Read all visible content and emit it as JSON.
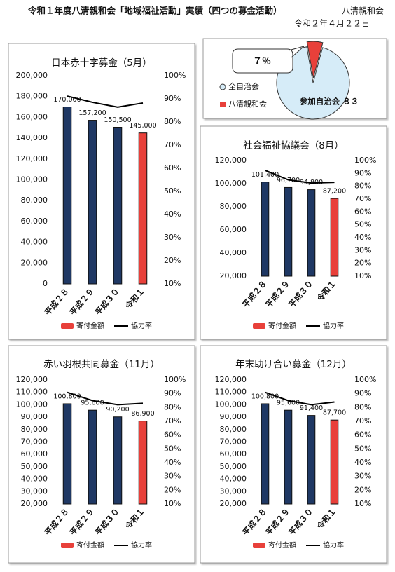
{
  "header": {
    "title": "令和１年度八清親和会「地域福祉活動」実績（四つの募金活動）",
    "org": "八清親和会",
    "date": "令和２年４月２２日"
  },
  "chart_data": [
    {
      "type": "bar",
      "title": "日本赤十字募金（5月）",
      "categories": [
        "平成２８",
        "平成２９",
        "平成３０",
        "令和１"
      ],
      "series": [
        {
          "name": "寄付金額",
          "colors": [
            "#1f3864",
            "#1f3864",
            "#1f3864",
            "#e8403a"
          ],
          "values": [
            170000,
            157200,
            150500,
            145000
          ],
          "value_labels": [
            "170,000",
            "157,200",
            "150,500",
            "145,000"
          ]
        },
        {
          "name": "協力率",
          "color": "#000000",
          "axis": "y2",
          "values": [
            91.2,
            88.5,
            86.4,
            88.2
          ]
        }
      ],
      "ylim": [
        0,
        200000
      ],
      "yticks": [
        0,
        {
          "value": 20000,
          "label": "20,000"
        },
        {
          "value": 40000,
          "label": "40,000"
        },
        {
          "value": 60000,
          "label": "60,000"
        },
        {
          "value": 80000,
          "label": "80,000"
        },
        {
          "value": 100000,
          "label": "100,000"
        },
        {
          "value": 120000,
          "label": "120,000"
        },
        {
          "value": 140000,
          "label": "140,000"
        },
        {
          "value": 160000,
          "label": "160,000"
        },
        {
          "value": 180000,
          "label": "180,000"
        },
        {
          "value": 200000,
          "label": "200,000"
        }
      ],
      "y2lim": [
        10,
        100
      ],
      "y2ticks": [
        {
          "value": 10,
          "label": "10%"
        },
        {
          "value": 20,
          "label": "20%"
        },
        {
          "value": 30,
          "label": "30%"
        },
        {
          "value": 40,
          "label": "40%"
        },
        {
          "value": 50,
          "label": "50%"
        },
        {
          "value": 60,
          "label": "60%"
        },
        {
          "value": 70,
          "label": "70%"
        },
        {
          "value": 80,
          "label": "80%"
        },
        {
          "value": 90,
          "label": "90%"
        },
        {
          "value": 100,
          "label": "100%"
        }
      ]
    },
    {
      "type": "pie",
      "categories": [
        "全自治会",
        "八清親和会"
      ],
      "values": [
        93,
        7
      ],
      "colors": [
        "#d6ecf8",
        "#e8403a"
      ],
      "annotations": [
        "７％",
        "参加自治会 ８３"
      ]
    },
    {
      "type": "bar",
      "title": "社会福祉協議会（8月）",
      "categories": [
        "平成２８",
        "平成２９",
        "平成３０",
        "令和１"
      ],
      "series": [
        {
          "name": "寄付金額",
          "colors": [
            "#1f3864",
            "#1f3864",
            "#1f3864",
            "#e8403a"
          ],
          "values": [
            101400,
            96700,
            94800,
            87200
          ],
          "value_labels": [
            "101,400",
            "96,700",
            "94,800",
            "87,200"
          ]
        },
        {
          "name": "協力率",
          "color": "#000000",
          "axis": "y2",
          "values": [
            92.4,
            85,
            82.5,
            83
          ]
        }
      ],
      "ylim": [
        20000,
        120000
      ],
      "yticks": [
        {
          "value": 20000,
          "label": "20,000"
        },
        {
          "value": 40000,
          "label": "40,000"
        },
        {
          "value": 60000,
          "label": "60,000"
        },
        {
          "value": 80000,
          "label": "80,000"
        },
        {
          "value": 100000,
          "label": "100,000"
        },
        {
          "value": 120000,
          "label": "120,000"
        }
      ],
      "y2lim": [
        10,
        100
      ],
      "y2ticks": [
        {
          "value": 10,
          "label": "10%"
        },
        {
          "value": 20,
          "label": "20%"
        },
        {
          "value": 30,
          "label": "30%"
        },
        {
          "value": 40,
          "label": "40%"
        },
        {
          "value": 50,
          "label": "50%"
        },
        {
          "value": 60,
          "label": "60%"
        },
        {
          "value": 70,
          "label": "70%"
        },
        {
          "value": 80,
          "label": "80%"
        },
        {
          "value": 90,
          "label": "90%"
        },
        {
          "value": 100,
          "label": "100%"
        }
      ]
    },
    {
      "type": "bar",
      "title": "赤い羽根共同募金（11月）",
      "categories": [
        "平成２８",
        "平成２９",
        "平成３０",
        "令和１"
      ],
      "series": [
        {
          "name": "寄付金額",
          "colors": [
            "#1f3864",
            "#1f3864",
            "#1f3864",
            "#e8403a"
          ],
          "values": [
            100800,
            95600,
            90200,
            86900
          ],
          "value_labels": [
            "100,800",
            "95,600",
            "90,200",
            "86,900"
          ]
        },
        {
          "name": "協力率",
          "color": "#000000",
          "axis": "y2",
          "values": [
            91,
            85,
            82,
            83
          ]
        }
      ],
      "ylim": [
        20000,
        120000
      ],
      "yticks": [
        {
          "value": 20000,
          "label": "20,000"
        },
        {
          "value": 30000,
          "label": "30,000"
        },
        {
          "value": 40000,
          "label": "40,000"
        },
        {
          "value": 50000,
          "label": "50,000"
        },
        {
          "value": 60000,
          "label": "60,000"
        },
        {
          "value": 70000,
          "label": "70,000"
        },
        {
          "value": 80000,
          "label": "80,000"
        },
        {
          "value": 90000,
          "label": "90,000"
        },
        {
          "value": 100000,
          "label": "100,000"
        },
        {
          "value": 110000,
          "label": "110,000"
        },
        {
          "value": 120000,
          "label": "120,000"
        }
      ],
      "y2lim": [
        10,
        100
      ],
      "y2ticks": [
        {
          "value": 10,
          "label": "10%"
        },
        {
          "value": 20,
          "label": "20%"
        },
        {
          "value": 30,
          "label": "30%"
        },
        {
          "value": 40,
          "label": "40%"
        },
        {
          "value": 50,
          "label": "50%"
        },
        {
          "value": 60,
          "label": "60%"
        },
        {
          "value": 70,
          "label": "70%"
        },
        {
          "value": 80,
          "label": "80%"
        },
        {
          "value": 90,
          "label": "90%"
        },
        {
          "value": 100,
          "label": "100%"
        }
      ]
    },
    {
      "type": "bar",
      "title": "年末助け合い募金（12月）",
      "categories": [
        "平成２８",
        "平成２９",
        "平成３０",
        "令和１"
      ],
      "series": [
        {
          "name": "寄付金額",
          "colors": [
            "#1f3864",
            "#1f3864",
            "#1f3864",
            "#e8403a"
          ],
          "values": [
            100800,
            95600,
            91400,
            87700
          ],
          "value_labels": [
            "100,800",
            "95,600",
            "91,400",
            "87,700"
          ]
        },
        {
          "name": "協力率",
          "color": "#000000",
          "axis": "y2",
          "values": [
            91,
            85,
            82,
            84
          ]
        }
      ],
      "ylim": [
        20000,
        120000
      ],
      "yticks": [
        {
          "value": 20000,
          "label": "20,000"
        },
        {
          "value": 30000,
          "label": "30,000"
        },
        {
          "value": 40000,
          "label": "40,000"
        },
        {
          "value": 50000,
          "label": "50,000"
        },
        {
          "value": 60000,
          "label": "60,000"
        },
        {
          "value": 70000,
          "label": "70,000"
        },
        {
          "value": 80000,
          "label": "80,000"
        },
        {
          "value": 90000,
          "label": "90,000"
        },
        {
          "value": 100000,
          "label": "100,000"
        },
        {
          "value": 110000,
          "label": "110,000"
        },
        {
          "value": 120000,
          "label": "120,000"
        }
      ],
      "y2lim": [
        10,
        100
      ],
      "y2ticks": [
        {
          "value": 10,
          "label": "10%"
        },
        {
          "value": 20,
          "label": "20%"
        },
        {
          "value": 30,
          "label": "30%"
        },
        {
          "value": 40,
          "label": "40%"
        },
        {
          "value": 50,
          "label": "50%"
        },
        {
          "value": 60,
          "label": "60%"
        },
        {
          "value": 70,
          "label": "70%"
        },
        {
          "value": 80,
          "label": "80%"
        },
        {
          "value": 90,
          "label": "90%"
        },
        {
          "value": 100,
          "label": "100%"
        }
      ]
    }
  ]
}
